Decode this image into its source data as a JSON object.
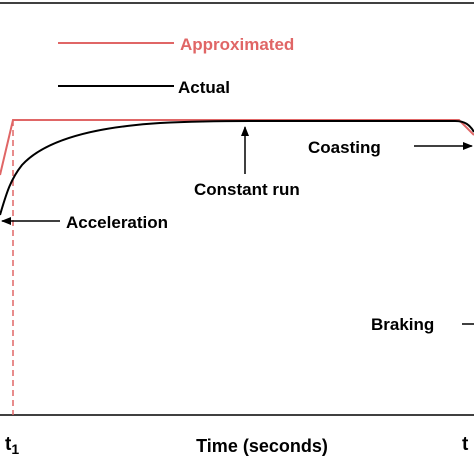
{
  "legend": {
    "approximated": "Approximated",
    "actual": "Actual"
  },
  "annotations": {
    "constant_run": "Constant run",
    "coasting": "Coasting",
    "acceleration": "Acceleration",
    "braking": "Braking"
  },
  "axis": {
    "xlabel": "Time (seconds)",
    "t1_base": "t",
    "t1_sub": "1",
    "t_right": "t"
  },
  "colors": {
    "approximated": "#e06666",
    "actual": "#000000",
    "text_black": "#000000",
    "text_red": "#e06666",
    "frame": "#000000"
  }
}
